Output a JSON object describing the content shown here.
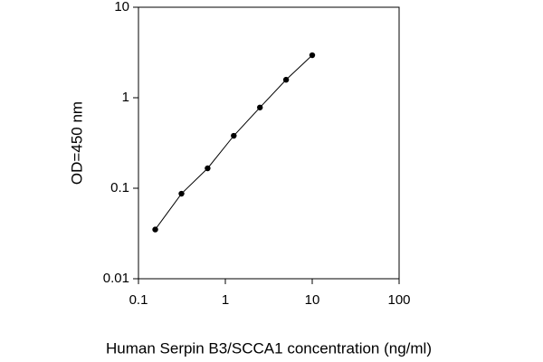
{
  "chart_data": {
    "type": "line",
    "xlabel": "Human Serpin B3/SCCA1 concentration (ng/ml)",
    "ylabel": "OD=450 nm",
    "x": [
      0.156,
      0.3125,
      0.625,
      1.25,
      2.5,
      5,
      10
    ],
    "values": [
      0.035,
      0.087,
      0.166,
      0.38,
      0.78,
      1.58,
      2.95
    ],
    "color": "#000000",
    "markers": true,
    "xscale": "log",
    "yscale": "log",
    "xlim": [
      0.1,
      100
    ],
    "ylim": [
      0.01,
      10
    ],
    "xticks": [
      0.1,
      1,
      10,
      100
    ],
    "yticks": [
      0.01,
      0.1,
      1,
      10
    ]
  }
}
